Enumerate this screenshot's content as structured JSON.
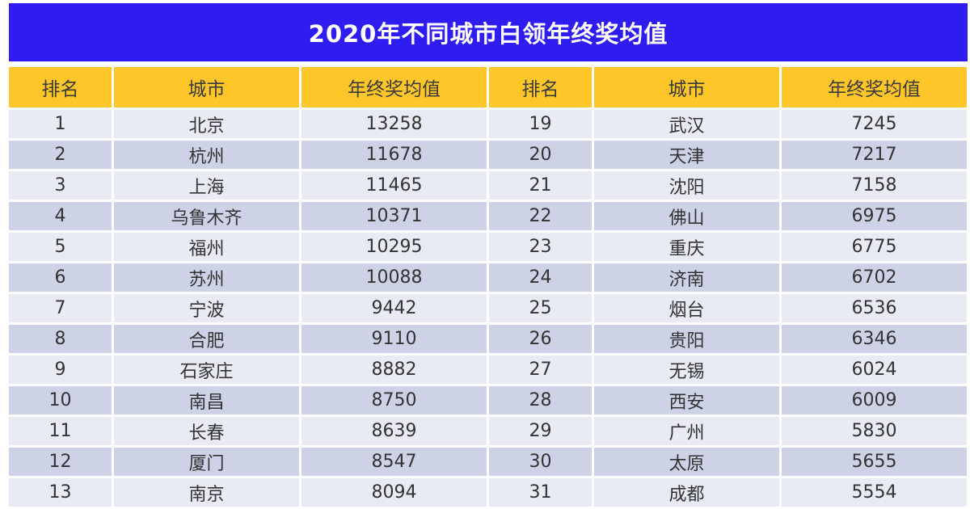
{
  "chart_data": {
    "type": "table",
    "title": "2020年不同城市白领年终奖均值",
    "columns": [
      "排名",
      "城市",
      "年终奖均值",
      "排名",
      "城市",
      "年终奖均值"
    ],
    "rows": [
      [
        "1",
        "北京",
        "13258",
        "19",
        "武汉",
        "7245"
      ],
      [
        "2",
        "杭州",
        "11678",
        "20",
        "天津",
        "7217"
      ],
      [
        "3",
        "上海",
        "11465",
        "21",
        "沈阳",
        "7158"
      ],
      [
        "4",
        "乌鲁木齐",
        "10371",
        "22",
        "佛山",
        "6975"
      ],
      [
        "5",
        "福州",
        "10295",
        "23",
        "重庆",
        "6775"
      ],
      [
        "6",
        "苏州",
        "10088",
        "24",
        "济南",
        "6702"
      ],
      [
        "7",
        "宁波",
        "9442",
        "25",
        "烟台",
        "6536"
      ],
      [
        "8",
        "合肥",
        "9110",
        "26",
        "贵阳",
        "6346"
      ],
      [
        "9",
        "石家庄",
        "8882",
        "27",
        "无锡",
        "6024"
      ],
      [
        "10",
        "南昌",
        "8750",
        "28",
        "西安",
        "6009"
      ],
      [
        "11",
        "长春",
        "8639",
        "29",
        "广州",
        "5830"
      ],
      [
        "12",
        "厦门",
        "8547",
        "30",
        "太原",
        "5655"
      ],
      [
        "13",
        "南京",
        "8094",
        "31",
        "成都",
        "5554"
      ]
    ]
  },
  "colors": {
    "title_bg": "#2e1cf0",
    "header_bg": "#ffc629",
    "row_light": "#e9ebf4",
    "row_dark": "#cdd2e7"
  }
}
